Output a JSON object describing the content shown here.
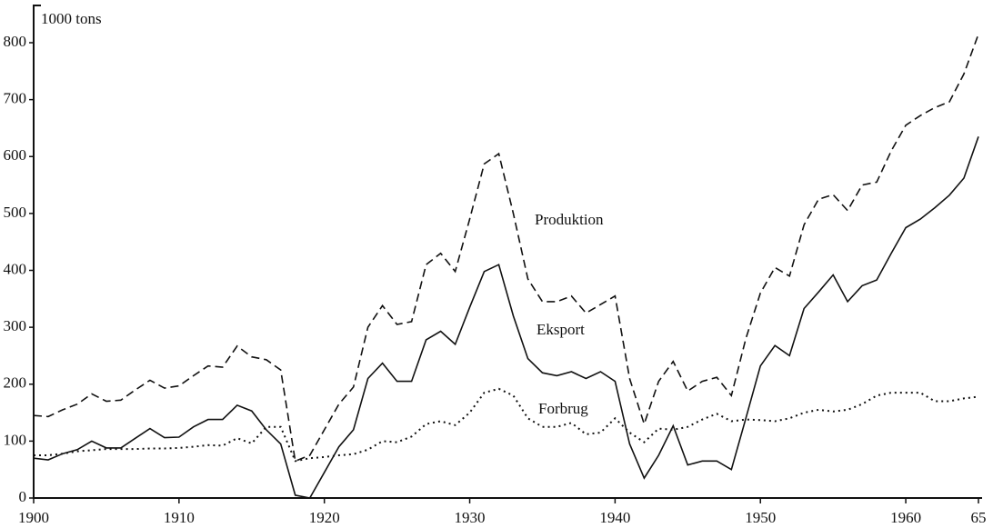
{
  "chart_data": {
    "type": "line",
    "y_label": "1000 tons",
    "x": [
      1900,
      1901,
      1902,
      1903,
      1904,
      1905,
      1906,
      1907,
      1908,
      1909,
      1910,
      1911,
      1912,
      1913,
      1914,
      1915,
      1916,
      1917,
      1918,
      1919,
      1920,
      1921,
      1922,
      1923,
      1924,
      1925,
      1926,
      1927,
      1928,
      1929,
      1930,
      1931,
      1932,
      1933,
      1934,
      1935,
      1936,
      1937,
      1938,
      1939,
      1940,
      1941,
      1942,
      1943,
      1944,
      1945,
      1946,
      1947,
      1948,
      1949,
      1950,
      1951,
      1952,
      1953,
      1954,
      1955,
      1956,
      1957,
      1958,
      1959,
      1960,
      1961,
      1962,
      1963,
      1964,
      1965
    ],
    "series": [
      {
        "name": "Produktion",
        "color": "#111111",
        "dash": "dashed",
        "values": [
          145,
          143,
          155,
          165,
          183,
          170,
          172,
          190,
          207,
          193,
          197,
          215,
          232,
          230,
          267,
          248,
          243,
          225,
          65,
          75,
          120,
          165,
          195,
          300,
          338,
          305,
          310,
          410,
          430,
          398,
          490,
          587,
          605,
          500,
          385,
          345,
          345,
          355,
          325,
          340,
          355,
          210,
          130,
          205,
          240,
          188,
          205,
          212,
          180,
          280,
          360,
          405,
          390,
          480,
          525,
          533,
          505,
          550,
          555,
          610,
          655,
          672,
          686,
          696,
          745,
          815
        ]
      },
      {
        "name": "Eksport",
        "color": "#111111",
        "dash": "solid",
        "values": [
          70,
          67,
          78,
          85,
          100,
          88,
          88,
          105,
          122,
          106,
          107,
          125,
          138,
          138,
          163,
          153,
          120,
          95,
          5,
          0,
          45,
          90,
          120,
          210,
          237,
          205,
          205,
          278,
          293,
          270,
          335,
          398,
          410,
          320,
          245,
          220,
          215,
          222,
          210,
          222,
          205,
          95,
          35,
          75,
          127,
          58,
          65,
          65,
          50,
          140,
          232,
          268,
          250,
          333,
          362,
          392,
          345,
          373,
          383,
          430,
          475,
          490,
          510,
          532,
          562,
          635
        ]
      },
      {
        "name": "Forbrug",
        "color": "#111111",
        "dash": "dotted",
        "values": [
          75,
          75,
          78,
          82,
          84,
          86,
          86,
          86,
          87,
          87,
          88,
          90,
          93,
          92,
          105,
          96,
          125,
          125,
          65,
          70,
          72,
          75,
          77,
          85,
          100,
          98,
          108,
          130,
          135,
          128,
          150,
          185,
          192,
          180,
          140,
          125,
          125,
          132,
          112,
          115,
          140,
          115,
          98,
          122,
          120,
          125,
          138,
          148,
          135,
          138,
          137,
          135,
          140,
          150,
          155,
          152,
          155,
          165,
          180,
          185,
          185,
          185,
          170,
          170,
          175,
          178
        ]
      }
    ],
    "xlim": [
      1900,
      1965
    ],
    "xticks": [
      1900,
      1910,
      1920,
      1930,
      1940,
      1950,
      1960,
      {
        "value": 1965,
        "label": "65"
      }
    ],
    "ylim": [
      0,
      800
    ],
    "yticks": [
      0,
      100,
      200,
      300,
      400,
      500,
      600,
      700,
      800
    ],
    "grid": false
  }
}
